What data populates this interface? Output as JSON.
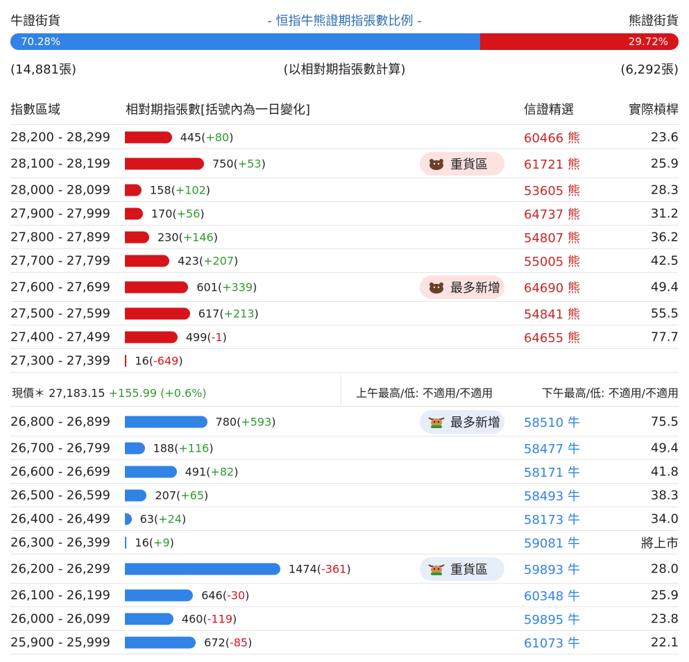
{
  "header": {
    "bull_label": "牛證街貨",
    "title": "- 恒指牛熊證期指張數比例 -",
    "bear_label": "熊證街貨",
    "bull_pct": "70.28%",
    "bear_pct": "29.72%",
    "bull_ratio": 0.7028,
    "bull_count": "(14,881張)",
    "note": "(以相對期指張數計算)",
    "bear_count": "(6,292張)"
  },
  "columns": {
    "range": "指數區域",
    "count": "相對期指張數[括號內為一日變化]",
    "select": "信證精選",
    "leverage": "實際槓桿"
  },
  "colors": {
    "bull": "#3183e6",
    "bear": "#d7141a",
    "positive": "#2e9a2e",
    "negative": "#d7141a",
    "title": "#2e6db4"
  },
  "bear_rows": [
    {
      "range": "28,200 - 28,299",
      "count": "445",
      "change": "+80",
      "tag": "",
      "code": "60466 熊",
      "leverage": "23.6"
    },
    {
      "range": "28,100 - 28,199",
      "count": "750",
      "change": "+53",
      "tag": "重貨區",
      "code": "61721 熊",
      "leverage": "25.9"
    },
    {
      "range": "28,000 - 28,099",
      "count": "158",
      "change": "+102",
      "tag": "",
      "code": "53605 熊",
      "leverage": "28.3"
    },
    {
      "range": "27,900 - 27,999",
      "count": "170",
      "change": "+56",
      "tag": "",
      "code": "64737 熊",
      "leverage": "31.2"
    },
    {
      "range": "27,800 - 27,899",
      "count": "230",
      "change": "+146",
      "tag": "",
      "code": "54807 熊",
      "leverage": "36.2"
    },
    {
      "range": "27,700 - 27,799",
      "count": "423",
      "change": "+207",
      "tag": "",
      "code": "55005 熊",
      "leverage": "42.5"
    },
    {
      "range": "27,600 - 27,699",
      "count": "601",
      "change": "+339",
      "tag": "最多新增",
      "code": "64690 熊",
      "leverage": "49.4"
    },
    {
      "range": "27,500 - 27,599",
      "count": "617",
      "change": "+213",
      "tag": "",
      "code": "54841 熊",
      "leverage": "55.5"
    },
    {
      "range": "27,400 - 27,499",
      "count": "499",
      "change": "-1",
      "tag": "",
      "code": "64655 熊",
      "leverage": "77.7"
    },
    {
      "range": "27,300 - 27,399",
      "count": "16",
      "change": "-649",
      "tag": "",
      "code": "",
      "leverage": ""
    }
  ],
  "spot": {
    "label": "現價＊",
    "price": "27,183.15",
    "change": "+155.99 (+0.6%)",
    "am": "上午最高/低: 不適用/不適用",
    "pm": "下午最高/低: 不適用/不適用"
  },
  "bull_rows": [
    {
      "range": "26,800 - 26,899",
      "count": "780",
      "change": "+593",
      "tag": "最多新增",
      "code": "58510 牛",
      "leverage": "75.5"
    },
    {
      "range": "26,700 - 26,799",
      "count": "188",
      "change": "+116",
      "tag": "",
      "code": "58477 牛",
      "leverage": "49.4"
    },
    {
      "range": "26,600 - 26,699",
      "count": "491",
      "change": "+82",
      "tag": "",
      "code": "58171 牛",
      "leverage": "41.8"
    },
    {
      "range": "26,500 - 26,599",
      "count": "207",
      "change": "+65",
      "tag": "",
      "code": "58493 牛",
      "leverage": "38.3"
    },
    {
      "range": "26,400 - 26,499",
      "count": "63",
      "change": "+24",
      "tag": "",
      "code": "58173 牛",
      "leverage": "34.0"
    },
    {
      "range": "26,300 - 26,399",
      "count": "16",
      "change": "+9",
      "tag": "",
      "code": "59081 牛",
      "leverage": "將上市"
    },
    {
      "range": "26,200 - 26,299",
      "count": "1474",
      "change": "-361",
      "tag": "重貨區",
      "code": "59893 牛",
      "leverage": "28.0"
    },
    {
      "range": "26,100 - 26,199",
      "count": "646",
      "change": "-30",
      "tag": "",
      "code": "60348 牛",
      "leverage": "25.9"
    },
    {
      "range": "26,000 - 26,099",
      "count": "460",
      "change": "-119",
      "tag": "",
      "code": "59895 牛",
      "leverage": "23.8"
    },
    {
      "range": "25,900 - 25,999",
      "count": "672",
      "change": "-85",
      "tag": "",
      "code": "61073 牛",
      "leverage": "22.1"
    }
  ]
}
